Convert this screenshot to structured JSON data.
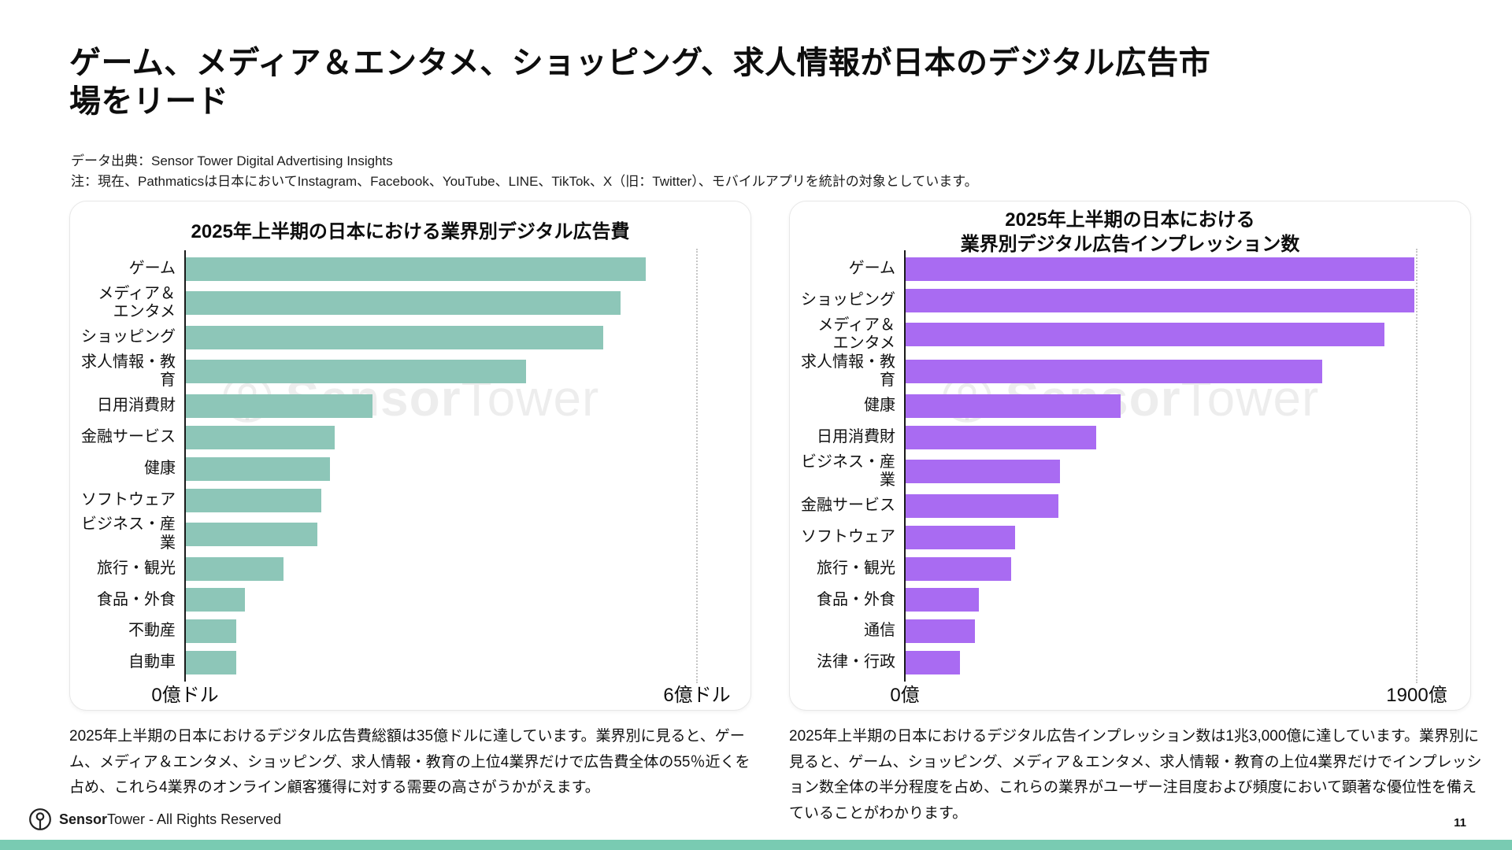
{
  "page": {
    "title": "ゲーム、メディア＆エンタメ、ショッピング、求人情報が日本のデジタル広告市場をリード",
    "source_line1": "データ出典：Sensor Tower Digital Advertising Insights",
    "source_line2": "注：現在、Pathmaticsは日本においてInstagram、Facebook、YouTube、LINE、TikTok、X（旧：Twitter）、モバイルアプリを統計の対象としています。",
    "page_number": "11"
  },
  "watermark": {
    "icon": "sensor-tower-logo",
    "bold": "Sensor",
    "light": "Tower"
  },
  "footer": {
    "icon": "sensor-tower-logo",
    "brand_bold": "Sensor",
    "brand_light": "Tower",
    "rights": " - All Rights Reserved"
  },
  "colors": {
    "left_bar": "#8dc6b8",
    "right_bar": "#a96bf2",
    "bottom_bar": "#79cbb2",
    "axis": "#1a1a1a",
    "gridline": "#c6c6c6"
  },
  "chart_data": [
    {
      "type": "bar",
      "orientation": "horizontal",
      "title": "2025年上半期の日本における業界別デジタル広告費",
      "categories": [
        "ゲーム",
        "メディア＆\nエンタメ",
        "ショッピング",
        "求人情報・教育",
        "日用消費財",
        "金融サービス",
        "健康",
        "ソフトウェア",
        "ビジネス・産業",
        "旅行・観光",
        "食品・外食",
        "不動産",
        "自動車"
      ],
      "values": [
        5.4,
        5.1,
        4.9,
        4.0,
        2.2,
        1.75,
        1.7,
        1.6,
        1.55,
        1.15,
        0.7,
        0.6,
        0.6
      ],
      "unit": "億ドル",
      "xlim": [
        0,
        6
      ],
      "x_ticks": [
        "0億ドル",
        "6億ドル"
      ],
      "grid": "single dotted line at max",
      "legend": "none",
      "bar_color": "#8dc6b8",
      "caption": "2025年上半期の日本におけるデジタル広告費総額は35億ドルに達しています。業界別に見ると、ゲーム、メディア＆エンタメ、ショッピング、求人情報・教育の上位4業界だけで広告費全体の55％近くを占め、これら4業界のオンライン顧客獲得に対する需要の高さがうかがえます。"
    },
    {
      "type": "bar",
      "orientation": "horizontal",
      "title": "2025年上半期の日本における\n業界別デジタル広告インプレッション数",
      "categories": [
        "ゲーム",
        "ショッピング",
        "メディア＆\nエンタメ",
        "求人情報・教育",
        "健康",
        "日用消費財",
        "ビジネス・産業",
        "金融サービス",
        "ソフトウェア",
        "旅行・観光",
        "食品・外食",
        "通信",
        "法律・行政"
      ],
      "values": [
        1890,
        1890,
        1780,
        1550,
        800,
        710,
        575,
        570,
        410,
        395,
        275,
        260,
        205
      ],
      "unit": "億",
      "xlim": [
        0,
        1900
      ],
      "x_ticks": [
        "0億",
        "1900億"
      ],
      "grid": "single dotted line at max",
      "legend": "none",
      "bar_color": "#a96bf2",
      "caption": "2025年上半期の日本におけるデジタル広告インプレッション数は1兆3,000億に達しています。業界別に見ると、ゲーム、ショッピング、メディア＆エンタメ、求人情報・教育の上位4業界だけでインプレッション数全体の半分程度を占め、これらの業界がユーザー注目度および頻度において顕著な優位性を備えていることがわかります。"
    }
  ]
}
